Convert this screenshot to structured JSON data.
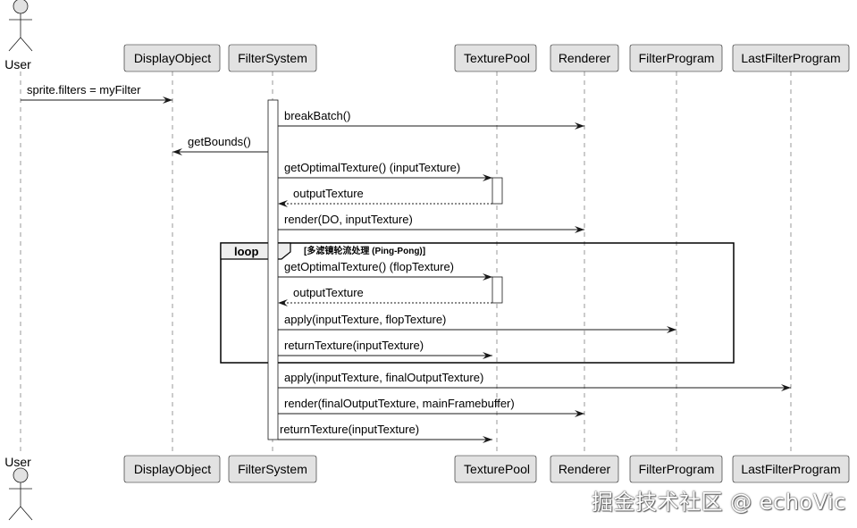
{
  "diagram": {
    "type": "sequence",
    "actor": {
      "id": "user",
      "label": "User"
    },
    "participants": [
      {
        "id": "do",
        "label": "DisplayObject"
      },
      {
        "id": "fs",
        "label": "FilterSystem"
      },
      {
        "id": "tp",
        "label": "TexturePool"
      },
      {
        "id": "r",
        "label": "Renderer"
      },
      {
        "id": "fp",
        "label": "FilterProgram"
      },
      {
        "id": "lfp",
        "label": "LastFilterProgram"
      }
    ],
    "messages": [
      {
        "from": "user",
        "to": "do",
        "label": "sprite.filters = myFilter",
        "dashed": false
      },
      {
        "from": "fs",
        "to": "r",
        "label": "breakBatch()",
        "dashed": false
      },
      {
        "from": "fs",
        "to": "do",
        "label": "getBounds()",
        "dashed": false
      },
      {
        "from": "fs",
        "to": "tp",
        "label": "getOptimalTexture() (inputTexture)",
        "dashed": false
      },
      {
        "from": "tp",
        "to": "fs",
        "label": "outputTexture",
        "dashed": true
      },
      {
        "from": "fs",
        "to": "r",
        "label": "render(DO, inputTexture)",
        "dashed": false
      },
      {
        "from": "fs",
        "to": "tp",
        "label": "getOptimalTexture() (flopTexture)",
        "dashed": false
      },
      {
        "from": "tp",
        "to": "fs",
        "label": "outputTexture",
        "dashed": true
      },
      {
        "from": "fs",
        "to": "fp",
        "label": "apply(inputTexture, flopTexture)",
        "dashed": false
      },
      {
        "from": "fs",
        "to": "tp",
        "label": "returnTexture(inputTexture)",
        "dashed": false
      },
      {
        "from": "fs",
        "to": "lfp",
        "label": "apply(inputTexture, finalOutputTexture)",
        "dashed": false
      },
      {
        "from": "fs",
        "to": "r",
        "label": "render(finalOutputTexture, mainFramebuffer)",
        "dashed": false
      },
      {
        "from": "fs",
        "to": "tp",
        "label": "returnTexture(inputTexture)",
        "dashed": false
      }
    ],
    "loop": {
      "keyword": "loop",
      "condition": "[多滤镜轮流处理 (Ping-Pong)]",
      "first_message": 6,
      "last_message": 9
    },
    "colors": {
      "participant_fill": "#e2e2e2",
      "participant_border": "#181818",
      "lifeline": "#9a9a9a"
    }
  },
  "watermark": "掘金技术社区 @ echoVic"
}
